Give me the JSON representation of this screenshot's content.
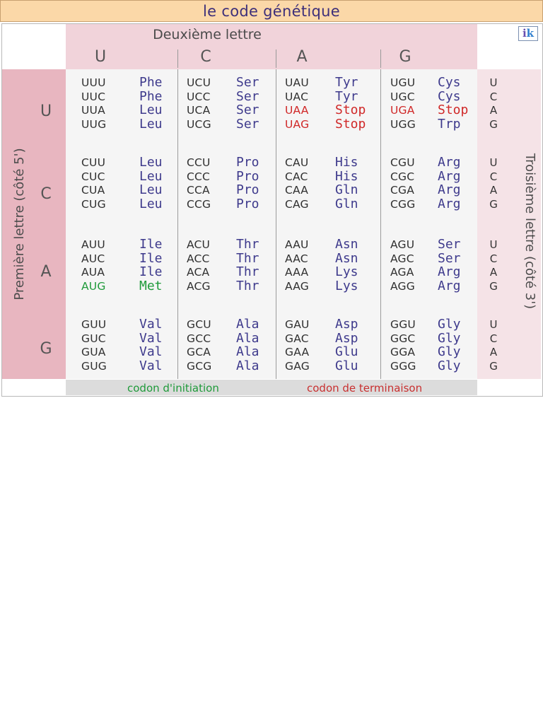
{
  "title": "le code génétique",
  "second_letter_label": "Deuxième lettre",
  "first_letter_label": "Première lettre (côté 5')",
  "third_letter_label": "Troisième lettre  (côté 3')",
  "logo_text": "ik",
  "letters": [
    "U",
    "C",
    "A",
    "G"
  ],
  "colors": {
    "stop": "#d02828",
    "initiation": "#1f9a3a",
    "amino_acid": "#3e3a8c"
  },
  "groups": [
    {
      "first": "U",
      "columns": [
        [
          {
            "codon": "UUU",
            "aa": "Phe"
          },
          {
            "codon": "UUC",
            "aa": "Phe"
          },
          {
            "codon": "UUA",
            "aa": "Leu"
          },
          {
            "codon": "UUG",
            "aa": "Leu"
          }
        ],
        [
          {
            "codon": "UCU",
            "aa": "Ser"
          },
          {
            "codon": "UCC",
            "aa": "Ser"
          },
          {
            "codon": "UCA",
            "aa": "Ser"
          },
          {
            "codon": "UCG",
            "aa": "Ser"
          }
        ],
        [
          {
            "codon": "UAU",
            "aa": "Tyr"
          },
          {
            "codon": "UAC",
            "aa": "Tyr"
          },
          {
            "codon": "UAA",
            "aa": "Stop",
            "type": "stop"
          },
          {
            "codon": "UAG",
            "aa": "Stop",
            "type": "stop"
          }
        ],
        [
          {
            "codon": "UGU",
            "aa": "Cys"
          },
          {
            "codon": "UGC",
            "aa": "Cys"
          },
          {
            "codon": "UGA",
            "aa": "Stop",
            "type": "stop"
          },
          {
            "codon": "UGG",
            "aa": "Trp"
          }
        ]
      ]
    },
    {
      "first": "C",
      "columns": [
        [
          {
            "codon": "CUU",
            "aa": "Leu"
          },
          {
            "codon": "CUC",
            "aa": "Leu"
          },
          {
            "codon": "CUA",
            "aa": "Leu"
          },
          {
            "codon": "CUG",
            "aa": "Leu"
          }
        ],
        [
          {
            "codon": "CCU",
            "aa": "Pro"
          },
          {
            "codon": "CCC",
            "aa": "Pro"
          },
          {
            "codon": "CCA",
            "aa": "Pro"
          },
          {
            "codon": "CCG",
            "aa": "Pro"
          }
        ],
        [
          {
            "codon": "CAU",
            "aa": "His"
          },
          {
            "codon": "CAC",
            "aa": "His"
          },
          {
            "codon": "CAA",
            "aa": "Gln"
          },
          {
            "codon": "CAG",
            "aa": "Gln"
          }
        ],
        [
          {
            "codon": "CGU",
            "aa": "Arg"
          },
          {
            "codon": "CGC",
            "aa": "Arg"
          },
          {
            "codon": "CGA",
            "aa": "Arg"
          },
          {
            "codon": "CGG",
            "aa": "Arg"
          }
        ]
      ]
    },
    {
      "first": "A",
      "columns": [
        [
          {
            "codon": "AUU",
            "aa": "Ile"
          },
          {
            "codon": "AUC",
            "aa": "Ile"
          },
          {
            "codon": "AUA",
            "aa": "Ile"
          },
          {
            "codon": "AUG",
            "aa": "Met",
            "type": "init"
          }
        ],
        [
          {
            "codon": "ACU",
            "aa": "Thr"
          },
          {
            "codon": "ACC",
            "aa": "Thr"
          },
          {
            "codon": "ACA",
            "aa": "Thr"
          },
          {
            "codon": "ACG",
            "aa": "Thr"
          }
        ],
        [
          {
            "codon": "AAU",
            "aa": "Asn"
          },
          {
            "codon": "AAC",
            "aa": "Asn"
          },
          {
            "codon": "AAA",
            "aa": "Lys"
          },
          {
            "codon": "AAG",
            "aa": "Lys"
          }
        ],
        [
          {
            "codon": "AGU",
            "aa": "Ser"
          },
          {
            "codon": "AGC",
            "aa": "Ser"
          },
          {
            "codon": "AGA",
            "aa": "Arg"
          },
          {
            "codon": "AGG",
            "aa": "Arg"
          }
        ]
      ]
    },
    {
      "first": "G",
      "columns": [
        [
          {
            "codon": "GUU",
            "aa": "Val"
          },
          {
            "codon": "GUC",
            "aa": "Val"
          },
          {
            "codon": "GUA",
            "aa": "Val"
          },
          {
            "codon": "GUG",
            "aa": "Val"
          }
        ],
        [
          {
            "codon": "GCU",
            "aa": "Ala"
          },
          {
            "codon": "GCC",
            "aa": "Ala"
          },
          {
            "codon": "GCA",
            "aa": "Ala"
          },
          {
            "codon": "GCG",
            "aa": "Ala"
          }
        ],
        [
          {
            "codon": "GAU",
            "aa": "Asp"
          },
          {
            "codon": "GAC",
            "aa": "Asp"
          },
          {
            "codon": "GAA",
            "aa": "Glu"
          },
          {
            "codon": "GAG",
            "aa": "Glu"
          }
        ],
        [
          {
            "codon": "GGU",
            "aa": "Gly"
          },
          {
            "codon": "GGC",
            "aa": "Gly"
          },
          {
            "codon": "GGA",
            "aa": "Gly"
          },
          {
            "codon": "GGG",
            "aa": "Gly"
          }
        ]
      ]
    }
  ],
  "legend": {
    "initiation": "codon d'initiation",
    "termination": "codon de terminaison"
  }
}
